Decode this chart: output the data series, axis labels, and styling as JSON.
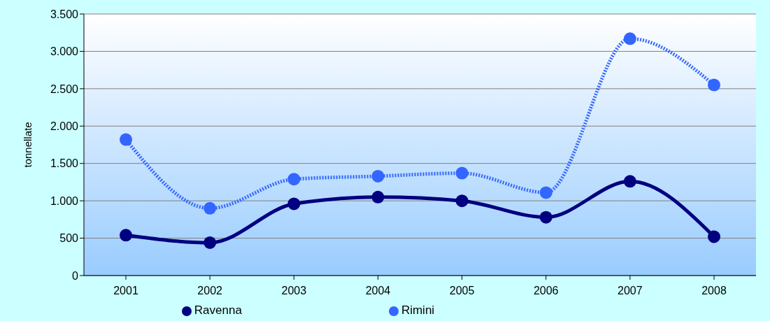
{
  "chart_data": {
    "type": "line",
    "ylabel": "tonnellate",
    "categories": [
      "2001",
      "2002",
      "2003",
      "2004",
      "2005",
      "2006",
      "2007",
      "2008"
    ],
    "series": [
      {
        "name": "Ravenna",
        "color": "#000080",
        "values": [
          540,
          440,
          960,
          1050,
          1000,
          780,
          1260,
          520
        ],
        "line_style": "solid"
      },
      {
        "name": "Rimini",
        "color": "#3366ff",
        "values": [
          1820,
          900,
          1290,
          1330,
          1370,
          1110,
          3170,
          2550
        ],
        "line_style": "dotted"
      }
    ],
    "ylim": [
      0,
      3500
    ],
    "yticks": [
      0,
      {
        "value": 500,
        "label": "500"
      },
      {
        "value": 1000,
        "label": "1.000"
      },
      {
        "value": 1500,
        "label": "1.500"
      },
      {
        "value": 2000,
        "label": "2.000"
      },
      {
        "value": 2500,
        "label": "2.500"
      },
      {
        "value": 3000,
        "label": "3.000"
      },
      {
        "value": 3500,
        "label": "3.500"
      }
    ],
    "grid": "y",
    "legend": "bottom",
    "marker": "circle"
  }
}
